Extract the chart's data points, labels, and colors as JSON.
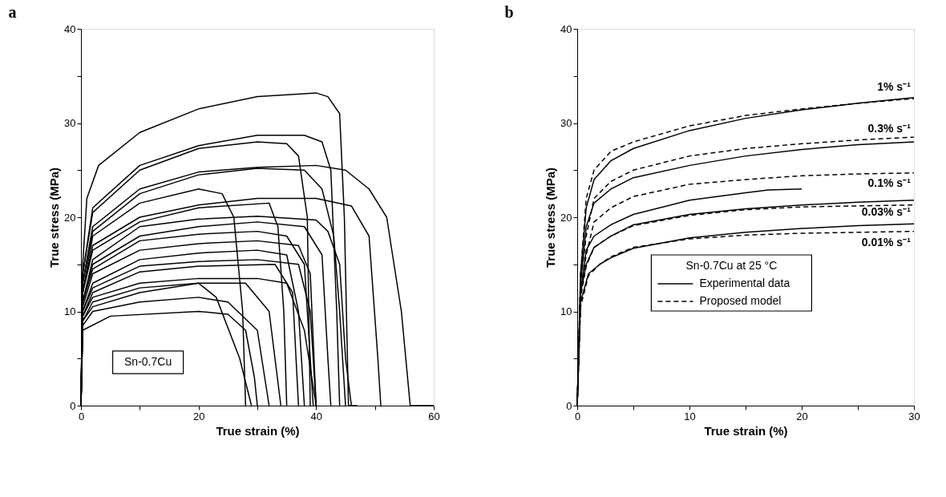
{
  "chart_data": [
    {
      "type": "line",
      "title": "a",
      "xlabel": "True strain (%)",
      "ylabel": "True stress (MPa)",
      "xlim": [
        0,
        60
      ],
      "ylim": [
        0,
        40
      ],
      "xticks": [
        0,
        {
          "value": 10,
          "label": null
        },
        20,
        {
          "value": 30,
          "label": null
        },
        40,
        {
          "value": 50,
          "label": null
        },
        60
      ],
      "yticks": [
        0,
        {
          "value": 5,
          "label": null
        },
        10,
        {
          "value": 15,
          "label": null
        },
        20,
        {
          "value": 25,
          "label": null
        },
        30,
        {
          "value": 35,
          "label": null
        },
        40
      ],
      "grid": false,
      "legend": false,
      "marker": "none",
      "line_style": "solid",
      "annotations": [
        "Sn-0.7Cu"
      ],
      "series": [
        {
          "color": "#000000",
          "x": [
            0,
            0.3,
            1,
            3,
            10,
            20,
            30,
            40,
            42,
            44,
            44.8,
            45.5,
            47
          ],
          "values": [
            0,
            15,
            22,
            25.5,
            29,
            31.5,
            32.8,
            33.2,
            32.8,
            31,
            20,
            0,
            0
          ]
        },
        {
          "color": "#000000",
          "x": [
            0,
            0.3,
            2,
            10,
            20,
            30,
            38,
            41,
            42.5,
            43.5,
            44
          ],
          "values": [
            0,
            14,
            21,
            25.5,
            27.6,
            28.7,
            28.7,
            28,
            25,
            10,
            0
          ]
        },
        {
          "color": "#000000",
          "x": [
            0,
            0.3,
            2,
            10,
            20,
            30,
            35,
            37,
            38.5,
            39
          ],
          "values": [
            0,
            14,
            20.5,
            25,
            27.3,
            28,
            27.8,
            26.5,
            20,
            0
          ]
        },
        {
          "color": "#000000",
          "x": [
            0,
            0.3,
            2,
            10,
            20,
            30,
            40,
            45,
            49,
            52,
            54.5,
            56,
            60
          ],
          "values": [
            0,
            13,
            19,
            23,
            24.8,
            25.3,
            25.5,
            25,
            23,
            20,
            10,
            0,
            0
          ]
        },
        {
          "color": "#000000",
          "x": [
            0,
            0.3,
            2,
            10,
            20,
            30,
            38,
            41,
            43,
            44,
            45
          ],
          "values": [
            0,
            13,
            18.5,
            22.5,
            24.5,
            25.2,
            25,
            23,
            18,
            10,
            0
          ]
        },
        {
          "color": "#000000",
          "x": [
            0,
            0.3,
            2,
            10,
            20,
            24,
            26,
            27.5,
            28
          ],
          "values": [
            0,
            12,
            18,
            21.5,
            23,
            22.5,
            20,
            10,
            0
          ]
        },
        {
          "color": "#000000",
          "x": [
            0,
            0.3,
            2,
            10,
            20,
            30,
            40,
            46,
            49,
            50.5,
            51
          ],
          "values": [
            0,
            12,
            17,
            20,
            21.3,
            22,
            22,
            21.2,
            18,
            5,
            0
          ]
        },
        {
          "color": "#000000",
          "x": [
            0,
            0.3,
            2,
            10,
            20,
            32,
            33.5,
            34.5,
            35
          ],
          "values": [
            0,
            12,
            16.5,
            19.5,
            21,
            21.5,
            19,
            10,
            0
          ]
        },
        {
          "color": "#000000",
          "x": [
            0,
            0.3,
            2,
            10,
            20,
            30,
            40,
            42,
            44,
            45,
            46
          ],
          "values": [
            0,
            11,
            15.5,
            19,
            19.8,
            20.1,
            19.7,
            18.5,
            15,
            5,
            0
          ]
        },
        {
          "color": "#000000",
          "x": [
            0,
            0.3,
            2,
            10,
            20,
            30,
            38,
            41,
            42,
            42.5
          ],
          "values": [
            0,
            11,
            15,
            18,
            19,
            19.5,
            19,
            16,
            5,
            0
          ]
        },
        {
          "color": "#000000",
          "x": [
            0,
            0.3,
            2,
            10,
            20,
            30,
            35,
            38,
            39.5
          ],
          "values": [
            0,
            11,
            14.5,
            17.5,
            18.2,
            18.5,
            18,
            15,
            0
          ]
        },
        {
          "color": "#000000",
          "x": [
            0,
            0.3,
            2,
            10,
            20,
            30,
            37,
            39,
            40
          ],
          "values": [
            0,
            10.5,
            14,
            16.5,
            17.2,
            17.5,
            17,
            14,
            0
          ]
        },
        {
          "color": "#000000",
          "x": [
            0,
            0.3,
            2,
            10,
            20,
            30,
            35,
            37,
            38
          ],
          "values": [
            0,
            10,
            13,
            15.5,
            16.2,
            16.5,
            16,
            10,
            0
          ]
        },
        {
          "color": "#000000",
          "x": [
            0,
            0.3,
            2,
            10,
            20,
            30,
            37,
            39,
            40
          ],
          "values": [
            0,
            10,
            12.5,
            14.8,
            15.3,
            15.5,
            15,
            10,
            0
          ]
        },
        {
          "color": "#000000",
          "x": [
            0,
            0.3,
            2,
            10,
            20,
            33,
            36,
            37
          ],
          "values": [
            0,
            9.5,
            12,
            14.2,
            14.8,
            15,
            12,
            0
          ]
        },
        {
          "color": "#000000",
          "x": [
            0,
            0.3,
            2,
            10,
            20,
            30,
            35,
            38,
            40
          ],
          "values": [
            0,
            9.5,
            11.5,
            13,
            13.5,
            13.5,
            13,
            8,
            0
          ]
        },
        {
          "color": "#000000",
          "x": [
            0,
            0.3,
            2,
            10,
            20,
            28,
            32,
            34
          ],
          "values": [
            0,
            9,
            11,
            12.5,
            13,
            13,
            10,
            0
          ]
        },
        {
          "color": "#000000",
          "x": [
            0,
            0.3,
            2,
            10,
            20,
            23,
            27,
            29
          ],
          "values": [
            0,
            9,
            10.5,
            12,
            13,
            11.5,
            5,
            0
          ]
        },
        {
          "color": "#000000",
          "x": [
            0,
            0.3,
            2,
            10,
            20,
            25,
            30,
            32
          ],
          "values": [
            0,
            8.5,
            10,
            11,
            11.5,
            11,
            8,
            0
          ]
        },
        {
          "color": "#000000",
          "x": [
            0,
            0.3,
            5,
            20,
            25,
            28,
            29.5,
            30
          ],
          "values": [
            0,
            8,
            9.5,
            10,
            9.7,
            8,
            3,
            0
          ]
        }
      ]
    },
    {
      "type": "line",
      "title": "b",
      "xlabel": "True strain (%)",
      "ylabel": "True stress (MPa)",
      "xlim": [
        0,
        30
      ],
      "ylim": [
        0,
        40
      ],
      "xticks": [
        0,
        {
          "value": 5,
          "label": null
        },
        10,
        {
          "value": 15,
          "label": null
        },
        20,
        {
          "value": 25,
          "label": null
        },
        30
      ],
      "yticks": [
        0,
        {
          "value": 5,
          "label": null
        },
        10,
        {
          "value": 15,
          "label": null
        },
        20,
        {
          "value": 25,
          "label": null
        },
        30,
        {
          "value": 35,
          "label": null
        },
        40
      ],
      "grid": false,
      "legend": "bottom",
      "legend_title": "Sn-0.7Cu at 25 °C",
      "marker": "none",
      "annotations": [
        "1% s⁻¹",
        "0.3% s⁻¹",
        "0.1% s⁻¹",
        "0.03% s⁻¹",
        "0.01% s⁻¹"
      ],
      "series": [
        {
          "name": "Experimental data",
          "color": "#000000",
          "line_style": "solid",
          "x": [
            0,
            0.3,
            0.8,
            1.5,
            3,
            5,
            10,
            15,
            20,
            25,
            30
          ],
          "values": [
            0,
            14,
            21,
            24,
            26,
            27.3,
            29.2,
            30.5,
            31.4,
            32.1,
            32.7
          ]
        },
        {
          "name": "Proposed model",
          "color": "#000000",
          "line_style": "dashed",
          "x": [
            0,
            0.3,
            0.8,
            1.5,
            3,
            5,
            10,
            15,
            20,
            25,
            30
          ],
          "values": [
            0,
            14,
            22,
            25,
            27,
            28,
            29.7,
            30.8,
            31.5,
            32.1,
            32.6
          ]
        },
        {
          "color": "#000000",
          "line_style": "solid",
          "x": [
            0,
            0.3,
            0.8,
            1.5,
            3,
            5,
            10,
            15,
            20,
            25,
            30
          ],
          "values": [
            0,
            13,
            19,
            21.5,
            23,
            24.2,
            25.5,
            26.5,
            27.2,
            27.7,
            28
          ]
        },
        {
          "color": "#000000",
          "line_style": "dashed",
          "x": [
            0,
            0.3,
            0.8,
            1.5,
            3,
            5,
            10,
            15,
            20,
            25,
            30
          ],
          "values": [
            0,
            13,
            18,
            22,
            23.8,
            25,
            26.5,
            27.3,
            27.8,
            28.2,
            28.5
          ]
        },
        {
          "color": "#000000",
          "line_style": "solid",
          "x": [
            0,
            0.3,
            0.8,
            1.5,
            3,
            5,
            10,
            15,
            17,
            20
          ],
          "values": [
            0,
            12,
            16.5,
            18,
            19.2,
            20.3,
            21.8,
            22.6,
            22.9,
            23
          ]
        },
        {
          "color": "#000000",
          "line_style": "dashed",
          "x": [
            0,
            0.3,
            0.8,
            1.5,
            3,
            5,
            10,
            15,
            20,
            25,
            30
          ],
          "values": [
            0,
            12,
            16,
            19.5,
            21,
            22.2,
            23.5,
            24,
            24.4,
            24.6,
            24.7
          ]
        },
        {
          "color": "#000000",
          "line_style": "solid",
          "x": [
            0,
            0.3,
            0.8,
            1.5,
            3,
            5,
            10,
            15,
            20,
            25,
            30
          ],
          "values": [
            0,
            12,
            15,
            16.8,
            18,
            19.2,
            20.3,
            20.9,
            21.3,
            21.6,
            21.8
          ]
        },
        {
          "color": "#000000",
          "line_style": "dashed",
          "x": [
            0,
            0.3,
            0.8,
            1.5,
            3,
            5,
            10,
            15,
            20,
            25,
            30
          ],
          "values": [
            0,
            11.5,
            14.8,
            16.8,
            18,
            19.1,
            20.2,
            20.8,
            21.1,
            21.2,
            21.3
          ]
        },
        {
          "color": "#000000",
          "line_style": "solid",
          "x": [
            0,
            0.3,
            1,
            2,
            3,
            5,
            10,
            15,
            20,
            25,
            30
          ],
          "values": [
            0,
            11,
            14,
            15,
            15.7,
            16.7,
            17.8,
            18.4,
            18.8,
            19.1,
            19.3
          ]
        },
        {
          "color": "#000000",
          "line_style": "dashed",
          "x": [
            0,
            0.3,
            1,
            2,
            3,
            5,
            10,
            15,
            20,
            25,
            30
          ],
          "values": [
            0,
            10.5,
            13.8,
            15,
            15.8,
            16.8,
            17.7,
            18.1,
            18.3,
            18.4,
            18.5
          ]
        }
      ]
    }
  ]
}
